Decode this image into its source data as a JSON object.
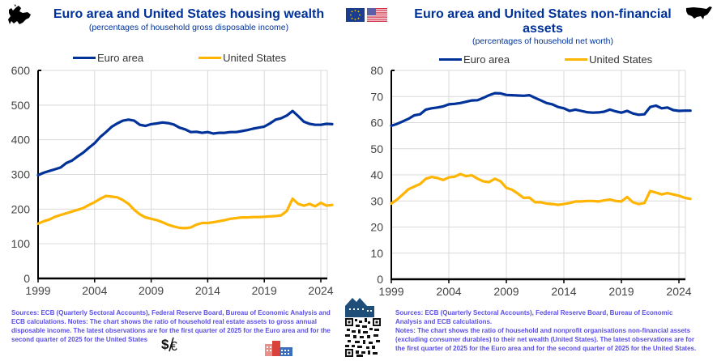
{
  "colors": {
    "euro": "#003299",
    "us": "#FFB400",
    "grid": "#d9d9d9",
    "axis": "#000000",
    "notes": "#5a4ee8"
  },
  "icons": {
    "europe_map": "europe-map-icon",
    "eu_flag": "eu-flag-icon",
    "us_flag": "us-flag-icon",
    "us_map": "us-map-icon",
    "houses": "houses-icon",
    "qr": "qr-code-icon",
    "currency": "dollar-euro-icon",
    "buildings": "buildings-icon"
  },
  "left": {
    "title": "Euro area and United States housing wealth",
    "subtitle": "(percentages of household gross disposable income)",
    "notes": "Sources: ECB (Quarterly Sectoral Accounts), Federal Reserve Board, Bureau of Economic Analysis and ECB calculations. Notes: The chart shows the ratio of household real estate assets to gross annual disposable income. The latest observations are for the first quarter of 2025 for the Euro area and for the second quarter of 2025 for the United States"
  },
  "right": {
    "title_line1": "Euro area and United States non-financial",
    "title_line2": "assets",
    "subtitle": "(percentages of household net worth)",
    "notes_sources": "Sources: ECB (Quarterly Sectoral Accounts), Federal Reserve Board, Bureau of Economic Analysis and ECB calculations.",
    "notes_text": "Notes: The chart shows the ratio of household and nonprofit organisations non-financial assets (excluding consumer durables) to their net wealth (United States). The latest observations are for the first quarter of 2025 for the Euro area and for the second quarter of 2025 for the United States."
  },
  "chart_data": [
    {
      "type": "line",
      "title": "Euro area and United States housing wealth",
      "subtitle": "(percentages of household gross disposable income)",
      "xlabel": "",
      "ylabel": "",
      "xlim": [
        1999,
        2025.6
      ],
      "ylim": [
        0,
        600
      ],
      "yticks": [
        0,
        100,
        200,
        300,
        400,
        500,
        600
      ],
      "xticks": [
        1999,
        2004,
        2009,
        2014,
        2019,
        2024
      ],
      "grid": true,
      "legend": "top",
      "series": [
        {
          "name": "Euro area",
          "color": "#003299",
          "x": [
            1999,
            1999.5,
            2000,
            2000.5,
            2001,
            2001.5,
            2002,
            2002.5,
            2003,
            2003.5,
            2004,
            2004.5,
            2005,
            2005.5,
            2006,
            2006.5,
            2007,
            2007.5,
            2008,
            2008.5,
            2009,
            2009.5,
            2010,
            2010.5,
            2011,
            2011.5,
            2012,
            2012.5,
            2013,
            2013.5,
            2014,
            2014.5,
            2015,
            2015.5,
            2016,
            2016.5,
            2017,
            2017.5,
            2018,
            2018.5,
            2019,
            2019.5,
            2020,
            2020.5,
            2021,
            2021.5,
            2022,
            2022.5,
            2023,
            2023.5,
            2024,
            2024.5,
            2025
          ],
          "y": [
            298,
            305,
            310,
            315,
            320,
            333,
            340,
            352,
            363,
            377,
            390,
            408,
            422,
            437,
            447,
            455,
            458,
            455,
            443,
            440,
            445,
            447,
            450,
            448,
            444,
            435,
            430,
            422,
            423,
            420,
            422,
            418,
            420,
            420,
            422,
            422,
            425,
            428,
            432,
            435,
            438,
            447,
            458,
            462,
            470,
            483,
            468,
            452,
            446,
            443,
            443,
            446,
            445
          ]
        },
        {
          "name": "United States",
          "color": "#FFB400",
          "x": [
            1999,
            1999.5,
            2000,
            2000.5,
            2001,
            2001.5,
            2002,
            2002.5,
            2003,
            2003.5,
            2004,
            2004.5,
            2005,
            2005.5,
            2006,
            2006.5,
            2007,
            2007.5,
            2008,
            2008.5,
            2009,
            2009.5,
            2010,
            2010.5,
            2011,
            2011.5,
            2012,
            2012.5,
            2013,
            2013.5,
            2014,
            2014.5,
            2015,
            2015.5,
            2016,
            2016.5,
            2017,
            2017.5,
            2018,
            2018.5,
            2019,
            2019.5,
            2020,
            2020.5,
            2021,
            2021.5,
            2022,
            2022.5,
            2023,
            2023.5,
            2024,
            2024.5,
            2025
          ],
          "y": [
            158,
            165,
            170,
            178,
            183,
            188,
            193,
            198,
            203,
            212,
            220,
            230,
            238,
            236,
            234,
            226,
            215,
            198,
            185,
            176,
            172,
            168,
            162,
            155,
            150,
            146,
            145,
            147,
            155,
            160,
            160,
            162,
            165,
            168,
            172,
            174,
            176,
            176,
            177,
            177,
            178,
            179,
            180,
            182,
            195,
            230,
            215,
            210,
            215,
            208,
            218,
            210,
            212
          ]
        }
      ]
    },
    {
      "type": "line",
      "title": "Euro area and United States non-financial assets",
      "subtitle": "(percentages of household net worth)",
      "xlabel": "",
      "ylabel": "",
      "xlim": [
        1999,
        2025.6
      ],
      "ylim": [
        0,
        80
      ],
      "yticks": [
        0,
        10,
        20,
        30,
        40,
        50,
        60,
        70,
        80
      ],
      "xticks": [
        1999,
        2004,
        2009,
        2014,
        2019,
        2024
      ],
      "grid": true,
      "legend": "top",
      "series": [
        {
          "name": "Euro area",
          "color": "#003299",
          "x": [
            1999,
            1999.5,
            2000,
            2000.5,
            2001,
            2001.5,
            2002,
            2002.5,
            2003,
            2003.5,
            2004,
            2004.5,
            2005,
            2005.5,
            2006,
            2006.5,
            2007,
            2007.5,
            2008,
            2008.5,
            2009,
            2009.5,
            2010,
            2010.5,
            2011,
            2011.5,
            2012,
            2012.5,
            2013,
            2013.5,
            2014,
            2014.5,
            2015,
            2015.5,
            2016,
            2016.5,
            2017,
            2017.5,
            2018,
            2018.5,
            2019,
            2019.5,
            2020,
            2020.5,
            2021,
            2021.5,
            2022,
            2022.5,
            2023,
            2023.5,
            2024,
            2024.5,
            2025
          ],
          "y": [
            58.8,
            59.5,
            60.5,
            61.5,
            62.8,
            63.2,
            65,
            65.5,
            65.8,
            66.2,
            67,
            67.2,
            67.5,
            68,
            68.5,
            68.6,
            69.5,
            70.5,
            71.3,
            71.2,
            70.6,
            70.5,
            70.4,
            70.3,
            70.5,
            69.5,
            68.5,
            67.5,
            67,
            66,
            65.5,
            64.5,
            65,
            64.5,
            64,
            63.8,
            63.9,
            64.2,
            65,
            64.3,
            63.8,
            64.5,
            63.5,
            63,
            63.2,
            66,
            66.5,
            65.5,
            65.8,
            64.8,
            64.5,
            64.6,
            64.6
          ]
        },
        {
          "name": "United States",
          "color": "#FFB400",
          "x": [
            1999,
            1999.5,
            2000,
            2000.5,
            2001,
            2001.5,
            2002,
            2002.5,
            2003,
            2003.5,
            2004,
            2004.5,
            2005,
            2005.5,
            2006,
            2006.5,
            2007,
            2007.5,
            2008,
            2008.5,
            2009,
            2009.5,
            2010,
            2010.5,
            2011,
            2011.5,
            2012,
            2012.5,
            2013,
            2013.5,
            2014,
            2014.5,
            2015,
            2015.5,
            2016,
            2016.5,
            2017,
            2017.5,
            2018,
            2018.5,
            2019,
            2019.5,
            2020,
            2020.5,
            2021,
            2021.5,
            2022,
            2022.5,
            2023,
            2023.5,
            2024,
            2024.5,
            2025
          ],
          "y": [
            29,
            30.5,
            32.5,
            34.5,
            35.5,
            36.5,
            38.5,
            39.2,
            38.8,
            38,
            39,
            39.3,
            40.3,
            39.5,
            39.8,
            38.5,
            37.5,
            37.2,
            38.5,
            37.5,
            35,
            34.3,
            32.8,
            31.2,
            31.3,
            29.5,
            29.5,
            29,
            28.8,
            28.5,
            28.8,
            29.2,
            29.8,
            29.8,
            30,
            30,
            29.8,
            30.2,
            30.5,
            30,
            29.8,
            31.5,
            29.5,
            28.8,
            29.2,
            33.8,
            33.2,
            32.5,
            33,
            32.5,
            32,
            31.2,
            30.8
          ]
        }
      ]
    }
  ]
}
